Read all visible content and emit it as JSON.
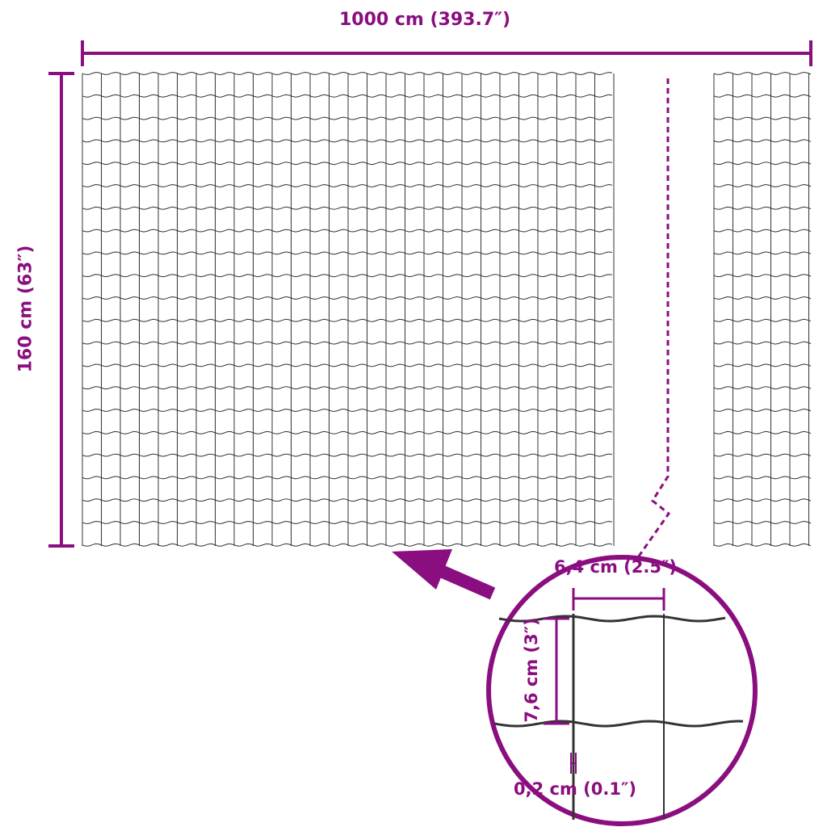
{
  "accent_color": "#8a0e80",
  "mesh_color": "#333333",
  "dimensions": {
    "length": "1000 cm (393.7″)",
    "height": "160 cm (63″)",
    "mesh_width": "6,4 cm (2.5″)",
    "mesh_height": "7,6 cm (3″)",
    "wire_diameter": "0,2 cm (0.1″)"
  }
}
